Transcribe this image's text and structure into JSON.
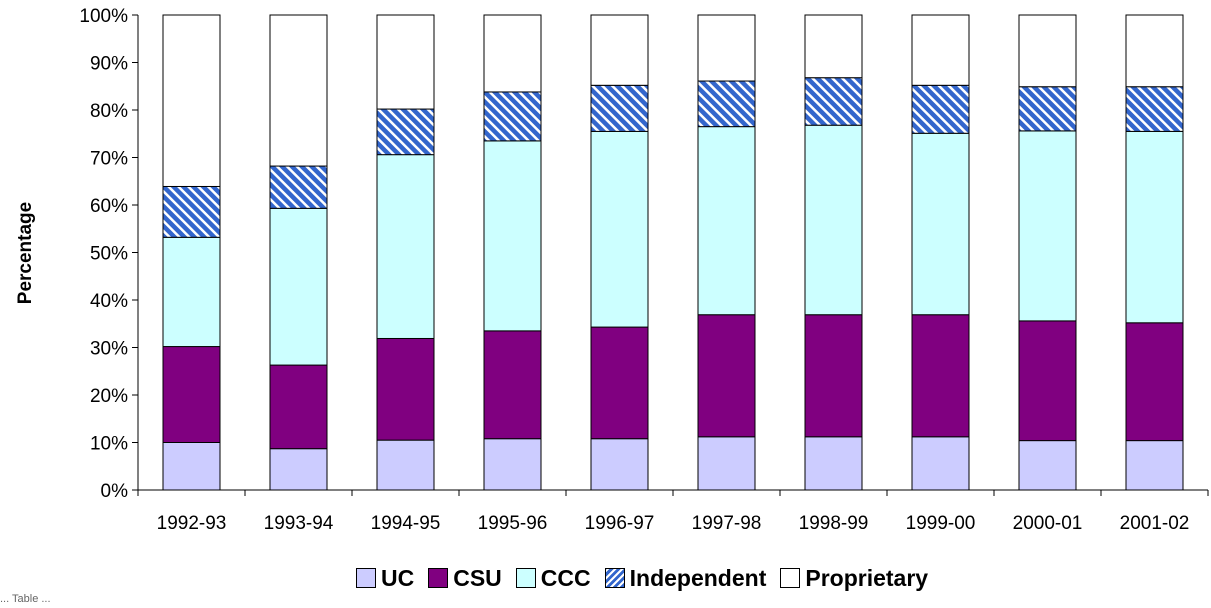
{
  "chart_data": {
    "type": "bar",
    "stacked": true,
    "ylabel": "Percentage",
    "xlabel": "",
    "ylim": [
      0,
      100
    ],
    "yticks": [
      "0%",
      "10%",
      "20%",
      "30%",
      "40%",
      "50%",
      "60%",
      "70%",
      "80%",
      "90%",
      "100%"
    ],
    "categories": [
      "1992-93",
      "1993-94",
      "1994-95",
      "1995-96",
      "1996-97",
      "1997-98",
      "1998-99",
      "1999-00",
      "2000-01",
      "2001-02"
    ],
    "series": [
      {
        "name": "UC",
        "color": "#ccccff",
        "pattern": "solid",
        "values": [
          10,
          8.7,
          10.5,
          10.8,
          10.8,
          11.2,
          11.2,
          11.2,
          10.4,
          10.4
        ]
      },
      {
        "name": "CSU",
        "color": "#800080",
        "pattern": "solid",
        "values": [
          20.2,
          17.6,
          21.4,
          22.7,
          23.5,
          25.7,
          25.7,
          25.7,
          25.2,
          24.8
        ]
      },
      {
        "name": "CCC",
        "color": "#ccffff",
        "pattern": "solid",
        "values": [
          23,
          33,
          38.7,
          40,
          41.2,
          39.6,
          39.9,
          38.2,
          40,
          40.3
        ]
      },
      {
        "name": "Independent",
        "color": "#3366cc",
        "pattern": "hatch",
        "values": [
          10.7,
          8.9,
          9.6,
          10.3,
          9.7,
          9.6,
          10,
          10.1,
          9.3,
          9.4
        ]
      },
      {
        "name": "Proprietary",
        "color": "#ffffff",
        "pattern": "solid",
        "values": [
          36.1,
          31.8,
          19.8,
          16.2,
          14.8,
          13.9,
          13.2,
          14.8,
          15.1,
          15.1
        ]
      }
    ],
    "legend_position": "bottom",
    "grid": false
  },
  "footnote": "...  Table ..."
}
